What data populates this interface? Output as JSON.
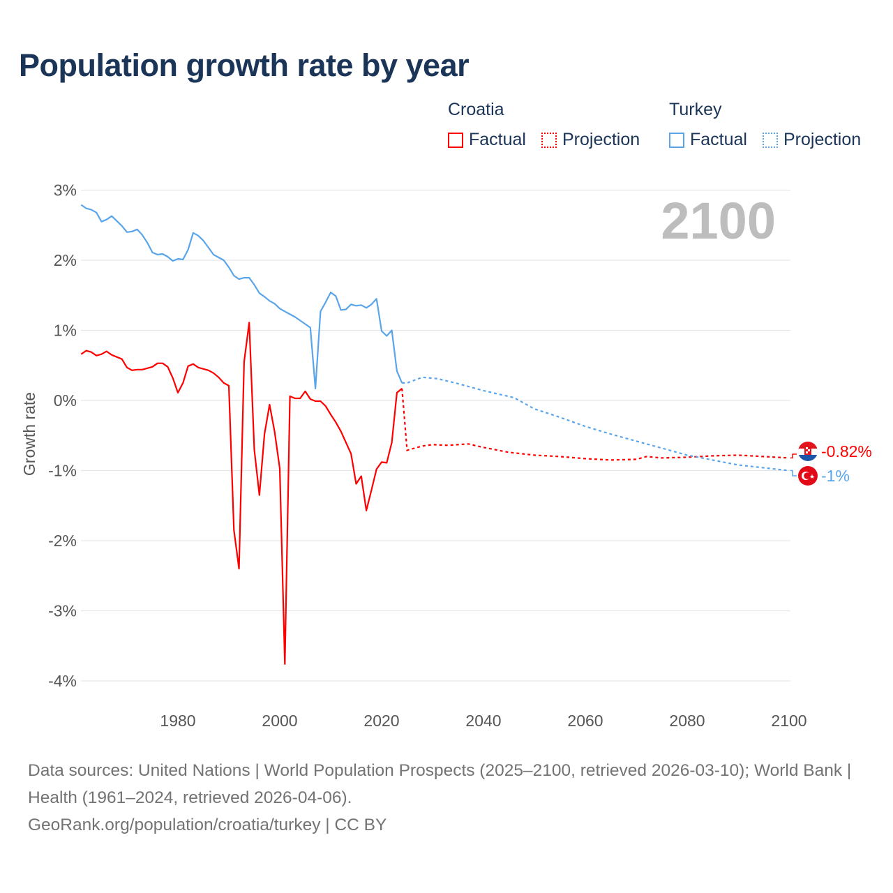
{
  "title": "Population growth rate by year",
  "legend": {
    "groups": [
      {
        "name": "Croatia",
        "color": "#ff0000",
        "factual": "Factual",
        "projection": "Projection"
      },
      {
        "name": "Turkey",
        "color": "#5aa5ea",
        "factual": "Factual",
        "projection": "Projection"
      }
    ]
  },
  "year_display": "2100",
  "footer": {
    "sources": "Data sources: United Nations | World Population Prospects (2025–2100, retrieved 2026-03-10); World Bank | Health (1961–2024, retrieved 2026-04-06).",
    "credit": "GeoRank.org/population/croatia/turkey | CC BY"
  },
  "chart_data": {
    "type": "line",
    "title": "Population growth rate by year",
    "xlabel": "",
    "ylabel": "Growth rate",
    "xlim": [
      1961,
      2100
    ],
    "ylim": [
      -4.3,
      3.2
    ],
    "xticks": [
      1980,
      2000,
      2020,
      2040,
      2060,
      2080,
      2100
    ],
    "xtick_labels": [
      "1980",
      "2000",
      "2020",
      "2040",
      "2060",
      "2080",
      "2100"
    ],
    "yticks": [
      3,
      2,
      1,
      0,
      -1,
      -2,
      -3,
      -4
    ],
    "ytick_labels": [
      "3%",
      "2%",
      "1%",
      "0%",
      "-1%",
      "-2%",
      "-3%",
      "-4%"
    ],
    "grid": true,
    "legend_position": "top-right",
    "series": [
      {
        "name": "Croatia",
        "color": "#ff0000",
        "end_label": "-0.82%",
        "factual": {
          "x": [
            1961,
            1962,
            1963,
            1964,
            1965,
            1966,
            1967,
            1968,
            1969,
            1970,
            1971,
            1972,
            1973,
            1974,
            1975,
            1976,
            1977,
            1978,
            1979,
            1980,
            1981,
            1982,
            1983,
            1984,
            1985,
            1986,
            1987,
            1988,
            1989,
            1990,
            1991,
            1992,
            1993,
            1994,
            1995,
            1996,
            1997,
            1998,
            1999,
            2000,
            2001,
            2002,
            2003,
            2004,
            2005,
            2006,
            2007,
            2008,
            2009,
            2010,
            2011,
            2012,
            2013,
            2014,
            2015,
            2016,
            2017,
            2018,
            2019,
            2020,
            2021,
            2022,
            2023,
            2024
          ],
          "y": [
            0.66,
            0.71,
            0.69,
            0.64,
            0.66,
            0.7,
            0.65,
            0.62,
            0.59,
            0.47,
            0.43,
            0.44,
            0.44,
            0.46,
            0.48,
            0.53,
            0.53,
            0.48,
            0.32,
            0.11,
            0.25,
            0.49,
            0.52,
            0.47,
            0.45,
            0.43,
            0.39,
            0.33,
            0.25,
            0.21,
            -1.85,
            -2.4,
            0.55,
            1.11,
            -0.7,
            -1.35,
            -0.48,
            -0.06,
            -0.45,
            -0.97,
            -3.76,
            0.06,
            0.03,
            0.03,
            0.13,
            0.02,
            -0.01,
            -0.01,
            -0.08,
            -0.2,
            -0.31,
            -0.44,
            -0.6,
            -0.76,
            -1.19,
            -1.08,
            -1.57,
            -1.28,
            -0.98,
            -0.88,
            -0.89,
            -0.6,
            0.11,
            0.17
          ]
        },
        "projection": {
          "x": [
            2024,
            2025,
            2028,
            2030,
            2033,
            2037,
            2040,
            2045,
            2050,
            2055,
            2060,
            2065,
            2070,
            2072,
            2075,
            2080,
            2085,
            2090,
            2095,
            2100
          ],
          "y": [
            0.17,
            -0.71,
            -0.65,
            -0.63,
            -0.64,
            -0.62,
            -0.67,
            -0.74,
            -0.78,
            -0.8,
            -0.83,
            -0.85,
            -0.84,
            -0.8,
            -0.82,
            -0.81,
            -0.79,
            -0.78,
            -0.8,
            -0.82
          ]
        }
      },
      {
        "name": "Turkey",
        "color": "#5aa5ea",
        "end_label": "-1%",
        "factual": {
          "x": [
            1961,
            1962,
            1963,
            1964,
            1965,
            1966,
            1967,
            1968,
            1969,
            1970,
            1971,
            1972,
            1973,
            1974,
            1975,
            1976,
            1977,
            1978,
            1979,
            1980,
            1981,
            1982,
            1983,
            1984,
            1985,
            1986,
            1987,
            1988,
            1989,
            1990,
            1991,
            1992,
            1993,
            1994,
            1995,
            1996,
            1997,
            1998,
            1999,
            2000,
            2001,
            2002,
            2003,
            2004,
            2005,
            2006,
            2007,
            2008,
            2009,
            2010,
            2011,
            2012,
            2013,
            2014,
            2015,
            2016,
            2017,
            2018,
            2019,
            2020,
            2021,
            2022,
            2023,
            2024
          ],
          "y": [
            2.79,
            2.74,
            2.72,
            2.68,
            2.55,
            2.58,
            2.63,
            2.56,
            2.49,
            2.4,
            2.41,
            2.44,
            2.36,
            2.25,
            2.11,
            2.08,
            2.09,
            2.05,
            1.99,
            2.02,
            2.01,
            2.15,
            2.39,
            2.35,
            2.28,
            2.18,
            2.08,
            2.04,
            2.0,
            1.9,
            1.78,
            1.73,
            1.75,
            1.75,
            1.65,
            1.53,
            1.48,
            1.42,
            1.38,
            1.31,
            1.27,
            1.23,
            1.19,
            1.14,
            1.09,
            1.04,
            0.17,
            1.27,
            1.4,
            1.54,
            1.49,
            1.29,
            1.3,
            1.37,
            1.35,
            1.36,
            1.32,
            1.37,
            1.45,
            0.99,
            0.92,
            1.0,
            0.42,
            0.25
          ]
        },
        "projection": {
          "x": [
            2024,
            2025,
            2028,
            2031,
            2035,
            2040,
            2046,
            2050,
            2055,
            2060,
            2065,
            2070,
            2075,
            2080,
            2085,
            2090,
            2095,
            2100
          ],
          "y": [
            0.25,
            0.25,
            0.33,
            0.31,
            0.24,
            0.14,
            0.04,
            -0.12,
            -0.24,
            -0.37,
            -0.48,
            -0.58,
            -0.68,
            -0.78,
            -0.85,
            -0.92,
            -0.96,
            -1.0
          ]
        }
      }
    ]
  }
}
